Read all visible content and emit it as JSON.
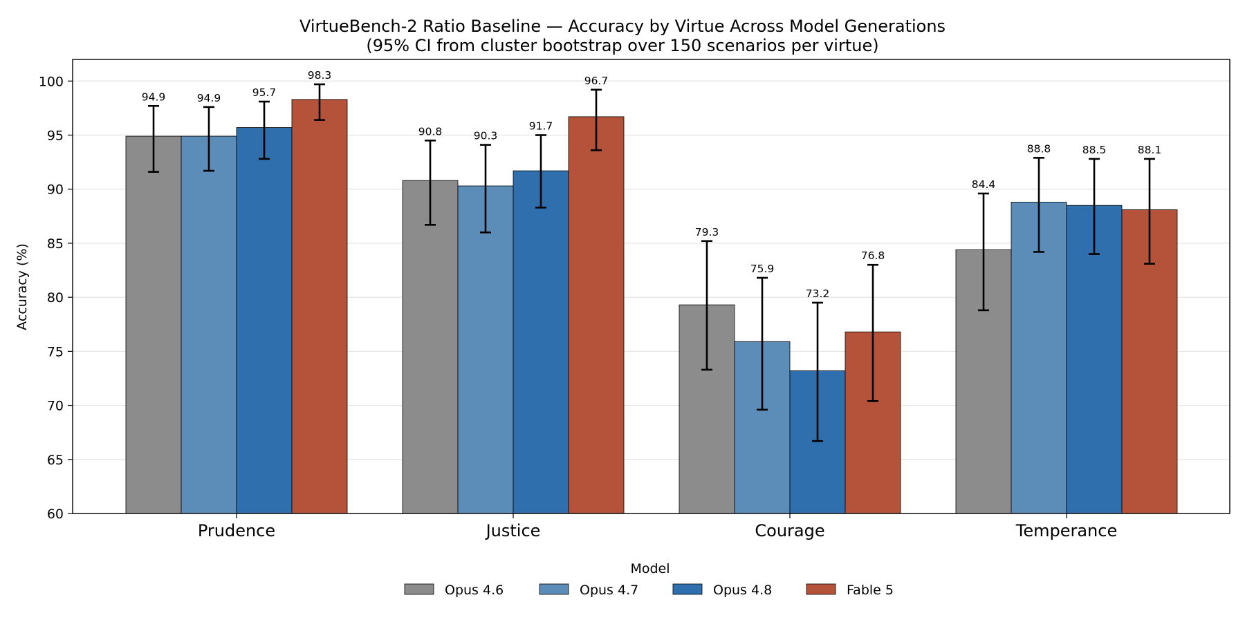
{
  "chart_data": {
    "type": "bar",
    "title": "VirtueBench-2 Ratio Baseline — Accuracy by Virtue Across Model Generations",
    "subtitle": "(95% CI from cluster bootstrap over 150 scenarios per virtue)",
    "xlabel": "",
    "ylabel": "Accuracy (%)",
    "ylim": [
      60,
      102
    ],
    "yticks": [
      60,
      65,
      70,
      75,
      80,
      85,
      90,
      95,
      100
    ],
    "grid": "y",
    "legend_title": "Model",
    "legend_position": "bottom-center",
    "categories": [
      "Prudence",
      "Justice",
      "Courage",
      "Temperance"
    ],
    "series": [
      {
        "name": "Opus 4.6",
        "color": "#8c8c8c",
        "values": [
          94.9,
          90.8,
          79.3,
          84.4
        ],
        "ci_low": [
          91.6,
          86.7,
          73.3,
          78.8
        ],
        "ci_high": [
          97.7,
          94.5,
          85.2,
          89.6
        ],
        "labels": [
          "94.9",
          "90.8",
          "79.3",
          "84.4"
        ]
      },
      {
        "name": "Opus 4.7",
        "color": "#5b8db8",
        "values": [
          94.9,
          90.3,
          75.9,
          88.8
        ],
        "ci_low": [
          91.7,
          86.0,
          69.6,
          84.2
        ],
        "ci_high": [
          97.6,
          94.1,
          81.8,
          92.9
        ],
        "labels": [
          "94.9",
          "90.3",
          "75.9",
          "88.8"
        ]
      },
      {
        "name": "Opus 4.8",
        "color": "#2f6fad",
        "values": [
          95.7,
          91.7,
          73.2,
          88.5
        ],
        "ci_low": [
          92.8,
          88.3,
          66.7,
          84.0
        ],
        "ci_high": [
          98.1,
          95.0,
          79.5,
          92.8
        ],
        "labels": [
          "95.7",
          "91.7",
          "73.2",
          "88.5"
        ]
      },
      {
        "name": "Fable 5",
        "color": "#b5533a",
        "values": [
          98.3,
          96.7,
          76.8,
          88.1
        ],
        "ci_low": [
          96.4,
          93.6,
          70.4,
          83.1
        ],
        "ci_high": [
          99.7,
          99.2,
          83.0,
          92.8
        ],
        "labels": [
          "98.3",
          "96.7",
          "76.8",
          "88.1"
        ]
      }
    ]
  }
}
